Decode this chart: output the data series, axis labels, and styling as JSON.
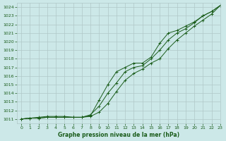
{
  "title": "Graphe pression niveau de la mer (hPa)",
  "background_color": "#cce8e8",
  "grid_color": "#b0c8c8",
  "line_color": "#1a5c1a",
  "xlim": [
    -0.5,
    23
  ],
  "ylim": [
    1010.5,
    1024.5
  ],
  "xticks": [
    0,
    1,
    2,
    3,
    4,
    5,
    6,
    7,
    8,
    9,
    10,
    11,
    12,
    13,
    14,
    15,
    16,
    17,
    18,
    19,
    20,
    21,
    22,
    23
  ],
  "yticks": [
    1011,
    1012,
    1013,
    1014,
    1015,
    1016,
    1017,
    1018,
    1019,
    1020,
    1021,
    1022,
    1023,
    1024
  ],
  "series": [
    [
      1011.0,
      1011.1,
      1011.1,
      1011.2,
      1011.2,
      1011.2,
      1011.2,
      1011.2,
      1011.3,
      1011.8,
      1012.8,
      1014.2,
      1015.5,
      1016.3,
      1016.8,
      1017.5,
      1018.0,
      1019.2,
      1020.2,
      1021.0,
      1021.8,
      1022.5,
      1023.2,
      1024.2
    ],
    [
      1011.0,
      1011.1,
      1011.1,
      1011.2,
      1011.2,
      1011.2,
      1011.2,
      1011.2,
      1011.5,
      1012.5,
      1014.0,
      1015.2,
      1016.5,
      1017.0,
      1017.2,
      1018.0,
      1019.0,
      1020.2,
      1021.0,
      1021.5,
      1022.2,
      1023.0,
      1023.5,
      1024.2
    ],
    [
      1011.0,
      1011.1,
      1011.2,
      1011.3,
      1011.3,
      1011.3,
      1011.2,
      1011.2,
      1011.4,
      1013.2,
      1015.0,
      1016.5,
      1017.0,
      1017.5,
      1017.5,
      1018.2,
      1019.8,
      1021.0,
      1021.3,
      1021.8,
      1022.3,
      1023.0,
      1023.5,
      1024.2
    ]
  ]
}
